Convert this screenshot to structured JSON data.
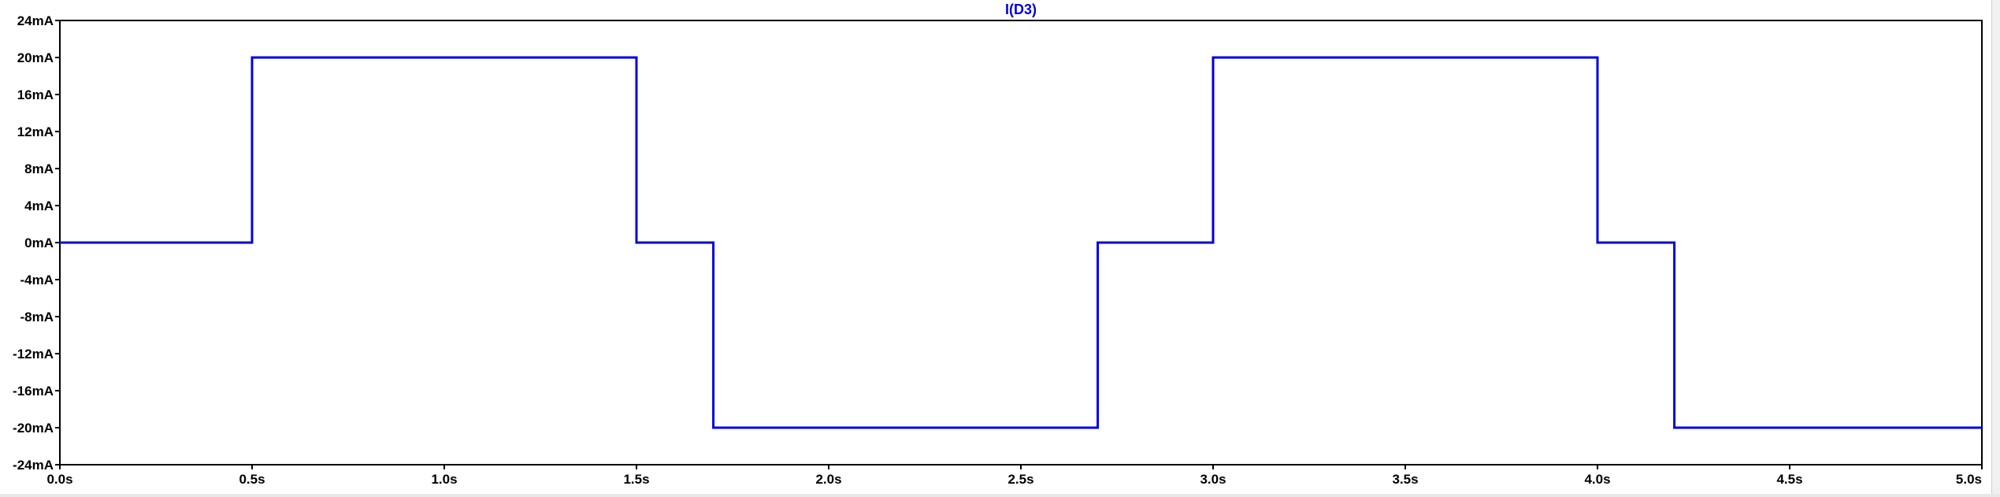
{
  "chart_data": {
    "type": "line",
    "title": "I(D3)",
    "xlabel": "",
    "ylabel": "",
    "xlim": [
      0.0,
      5.0
    ],
    "ylim": [
      -24,
      24
    ],
    "x_unit": "s",
    "y_unit": "mA",
    "x_ticks": [
      "0.0s",
      "0.5s",
      "1.0s",
      "1.5s",
      "2.0s",
      "2.5s",
      "3.0s",
      "3.5s",
      "4.0s",
      "4.5s",
      "5.0s"
    ],
    "x_tick_values": [
      0.0,
      0.5,
      1.0,
      1.5,
      2.0,
      2.5,
      3.0,
      3.5,
      4.0,
      4.5,
      5.0
    ],
    "y_ticks": [
      "24mA",
      "20mA",
      "16mA",
      "12mA",
      "8mA",
      "4mA",
      "0mA",
      "-4mA",
      "-8mA",
      "-12mA",
      "-16mA",
      "-20mA",
      "-24mA"
    ],
    "y_tick_values": [
      24,
      20,
      16,
      12,
      8,
      4,
      0,
      -4,
      -8,
      -12,
      -16,
      -20,
      -24
    ],
    "grid": false,
    "series": [
      {
        "name": "I(D3)",
        "color": "#0000dd",
        "step": true,
        "x": [
          0.0,
          0.5,
          0.5,
          1.5,
          1.5,
          1.7,
          1.7,
          2.7,
          2.7,
          3.0,
          3.0,
          4.0,
          4.0,
          4.2,
          4.2,
          5.0
        ],
        "y": [
          0,
          0,
          20,
          20,
          0,
          0,
          -20,
          -20,
          0,
          0,
          20,
          20,
          0,
          0,
          -20,
          -20
        ]
      }
    ]
  },
  "colors": {
    "trace": "#0000dd",
    "title": "#0000dd",
    "axis": "#000000",
    "background": "#ffffff"
  }
}
